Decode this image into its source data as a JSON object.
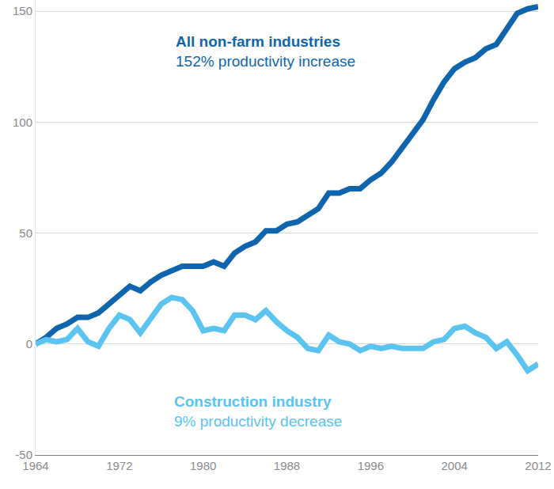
{
  "chart_data": {
    "type": "line",
    "x": [
      1964,
      1965,
      1966,
      1967,
      1968,
      1969,
      1970,
      1971,
      1972,
      1973,
      1974,
      1975,
      1976,
      1977,
      1978,
      1979,
      1980,
      1981,
      1982,
      1983,
      1984,
      1985,
      1986,
      1987,
      1988,
      1989,
      1990,
      1991,
      1992,
      1993,
      1994,
      1995,
      1996,
      1997,
      1998,
      1999,
      2000,
      2001,
      2002,
      2003,
      2004,
      2005,
      2006,
      2007,
      2008,
      2009,
      2010,
      2011,
      2012
    ],
    "series": [
      {
        "name": "All non-farm industries",
        "annotation": "152% productivity increase",
        "color": "#0f65ad",
        "values": [
          0,
          3,
          7,
          9,
          12,
          12,
          14,
          18,
          22,
          26,
          24,
          28,
          31,
          33,
          35,
          35,
          35,
          37,
          35,
          41,
          44,
          46,
          51,
          51,
          54,
          55,
          58,
          61,
          68,
          68,
          70,
          70,
          74,
          77,
          82,
          88,
          95,
          101,
          110,
          118,
          124,
          127,
          129,
          133,
          135,
          142,
          149,
          151,
          152
        ]
      },
      {
        "name": "Construction industry",
        "annotation": "9% productivity decrease",
        "color": "#5ac3f0",
        "values": [
          0,
          2,
          1,
          2,
          7,
          1,
          -1,
          7,
          13,
          11,
          5,
          12,
          18,
          21,
          20,
          15,
          6,
          7,
          6,
          13,
          13,
          11,
          15,
          10,
          6,
          3,
          -2,
          -3,
          4,
          1,
          0,
          -3,
          -1,
          -2,
          -1,
          -2,
          -2,
          -2,
          1,
          2,
          7,
          8,
          5,
          3,
          -2,
          1,
          -5,
          -12,
          -9
        ]
      }
    ],
    "xlim": [
      1964,
      2012
    ],
    "xticks": [
      1964,
      1972,
      1980,
      1988,
      1996,
      2004,
      2012
    ],
    "ylim": [
      -50,
      155
    ],
    "yticks": [
      -50,
      0,
      50,
      100,
      150
    ],
    "grid": true,
    "legend": false
  }
}
